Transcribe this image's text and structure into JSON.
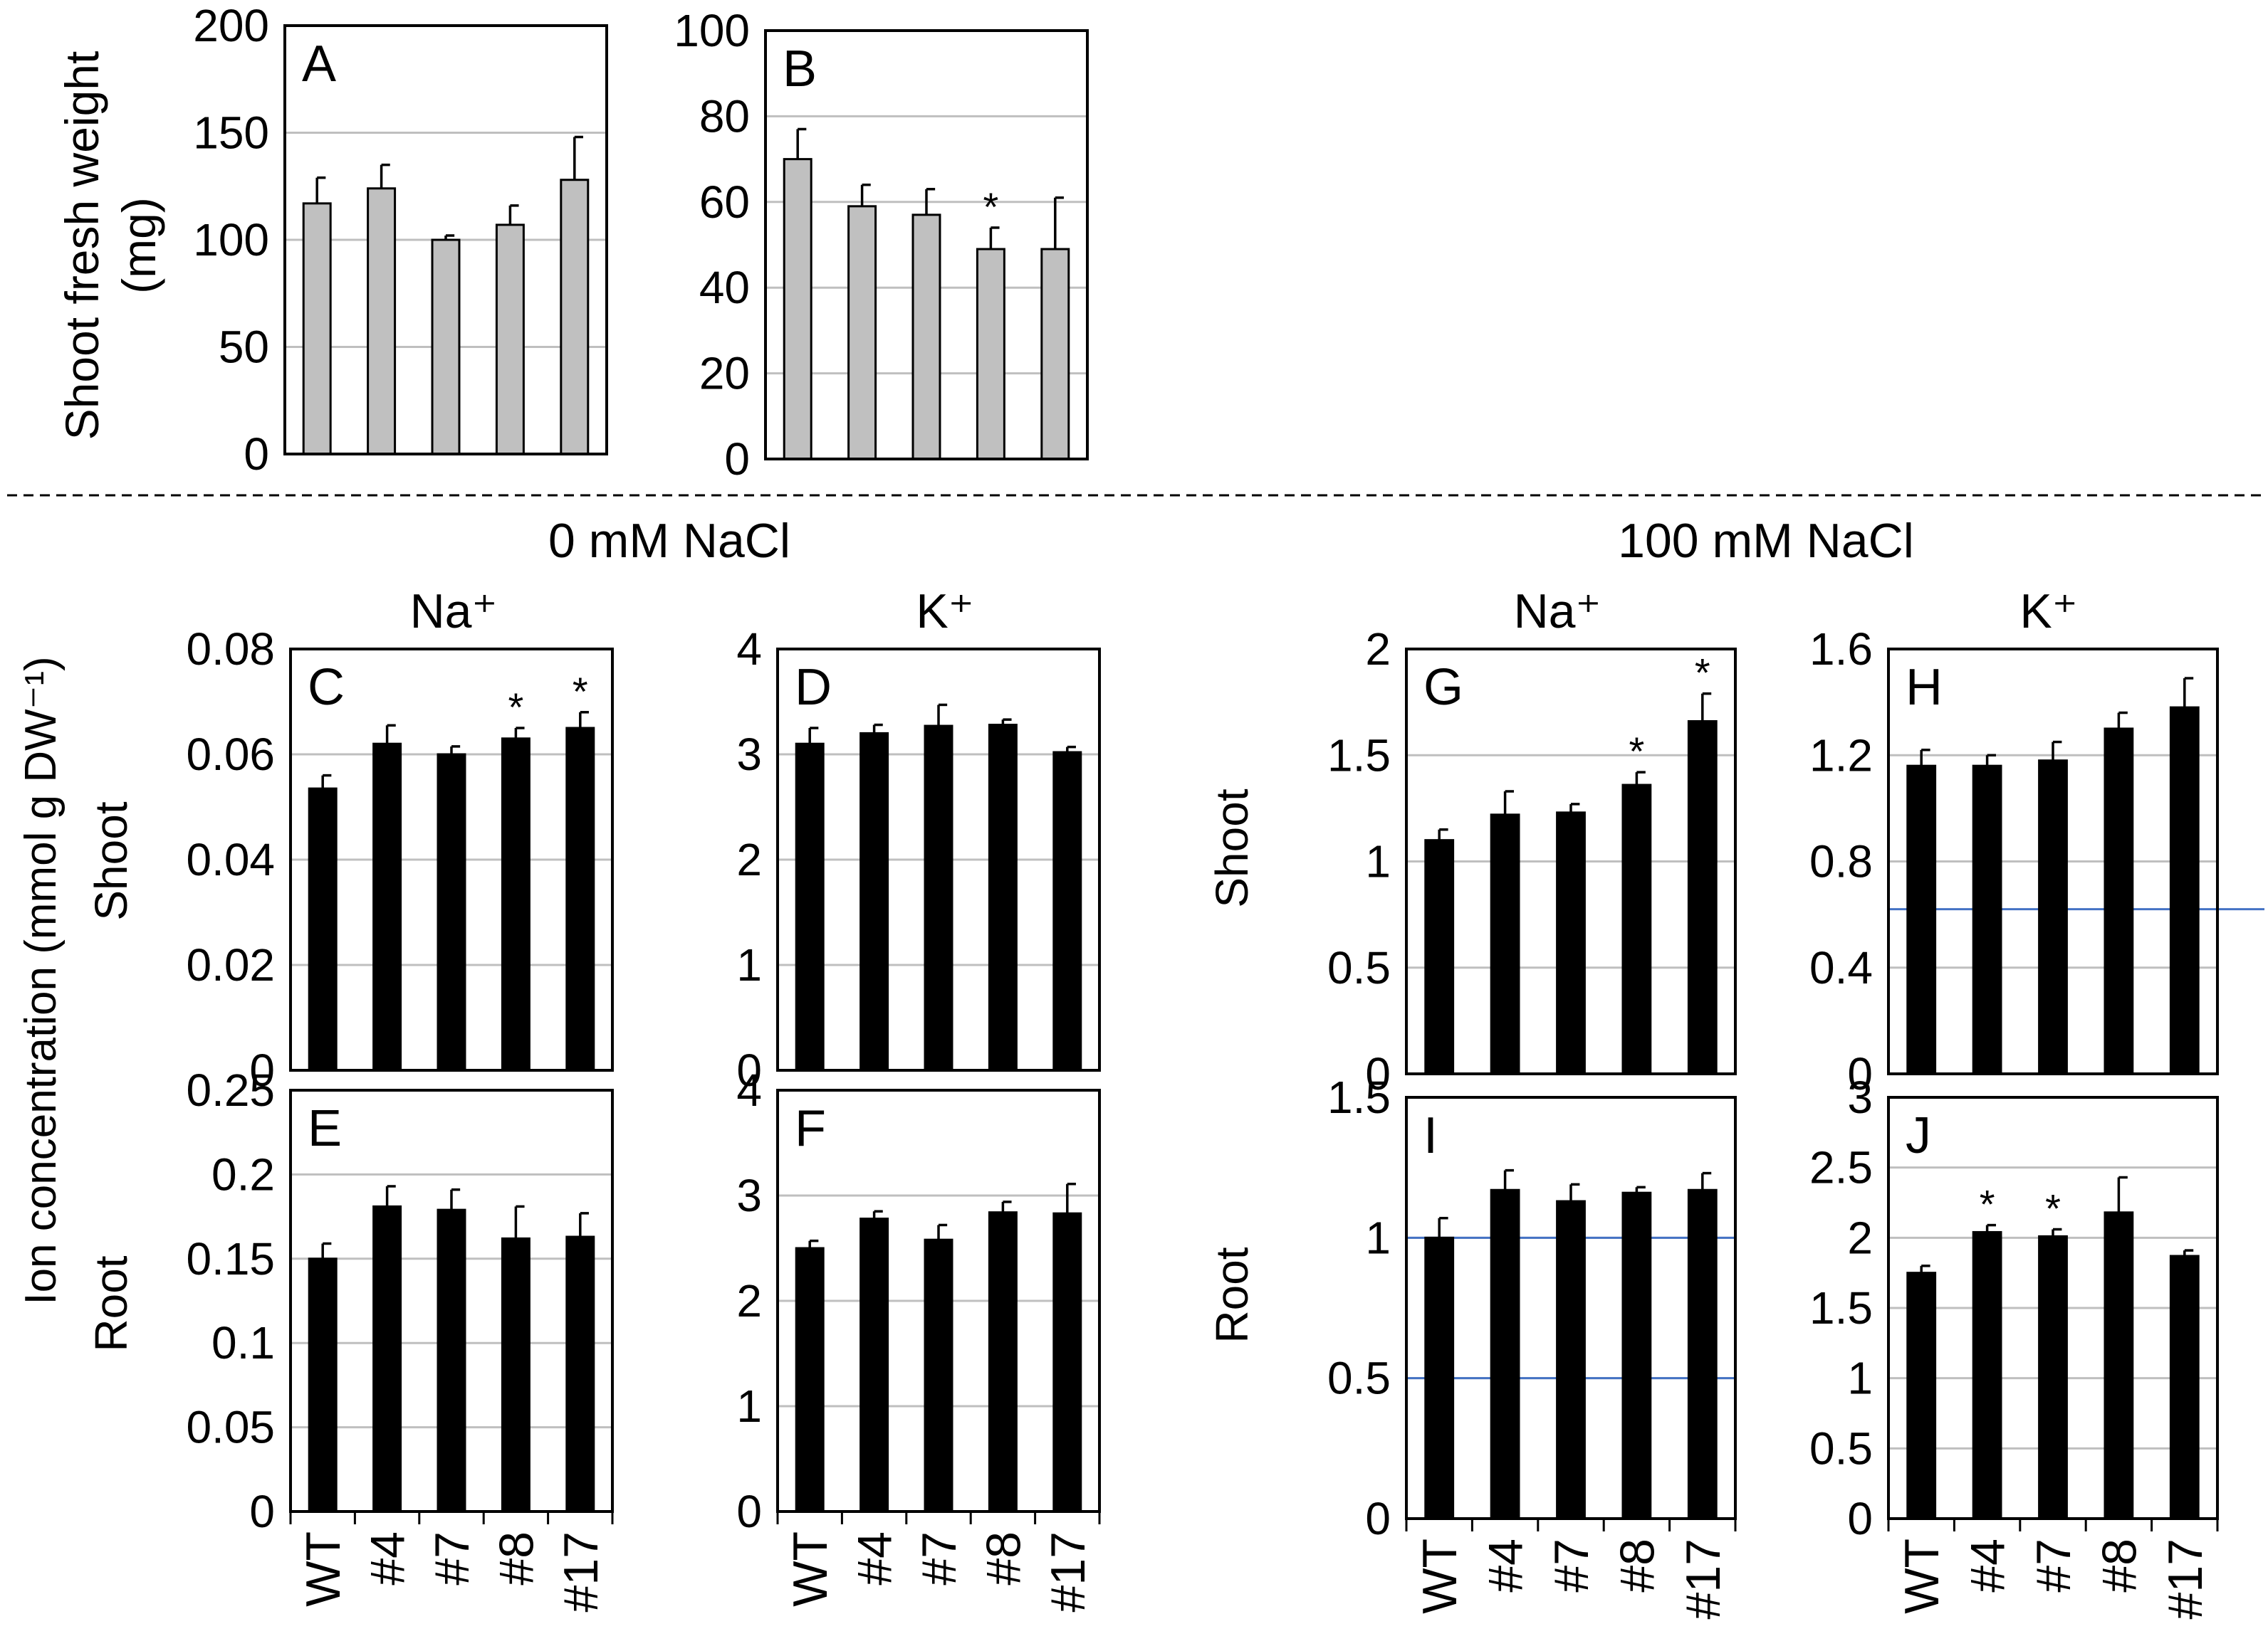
{
  "figure": {
    "section_labels": {
      "nacl_0": "0 mM NaCl",
      "nacl_100": "100 mM NaCl"
    },
    "ion_labels": {
      "na": "Na⁺",
      "k": "K⁺"
    },
    "row_labels": {
      "shoot": "Shoot",
      "root": "Root"
    },
    "ylabel_top": [
      "Shoot fresh weight",
      "(mg)"
    ],
    "ylabel_ion": "Ion concentration (mmol g DW⁻¹)",
    "significance_marker": "*",
    "colors": {
      "gray_bar": "#c0c0c0",
      "black_bar": "#000000",
      "grid": "#bfbfbf",
      "blue_grid": "#4472c4"
    }
  },
  "chart_data": [
    {
      "id": "A",
      "type": "bar",
      "panel_label": "A",
      "categories": [
        "WT",
        "#4",
        "#7",
        "#8",
        "#17"
      ],
      "values": [
        117,
        124,
        100,
        107,
        128
      ],
      "errors": [
        12,
        11,
        2,
        9,
        20
      ],
      "significant": [
        false,
        false,
        false,
        false,
        false
      ],
      "ylim": [
        0,
        200
      ],
      "ticks": [
        "0",
        "50",
        "100",
        "150",
        "200"
      ],
      "bar_color": "gray",
      "show_xlabels": false
    },
    {
      "id": "B",
      "type": "bar",
      "panel_label": "B",
      "categories": [
        "WT",
        "#4",
        "#7",
        "#8",
        "#17"
      ],
      "values": [
        70,
        59,
        57,
        49,
        49
      ],
      "errors": [
        7,
        5,
        6,
        5,
        12
      ],
      "significant": [
        false,
        false,
        false,
        true,
        false
      ],
      "ylim": [
        0,
        100
      ],
      "ticks": [
        "0",
        "20",
        "40",
        "60",
        "80",
        "100"
      ],
      "bar_color": "gray",
      "show_xlabels": false
    },
    {
      "id": "C",
      "type": "bar",
      "panel_label": "C",
      "categories": [
        "WT",
        "#4",
        "#7",
        "#8",
        "#17"
      ],
      "values": [
        0.0535,
        0.062,
        0.06,
        0.063,
        0.065
      ],
      "errors": [
        0.0025,
        0.0035,
        0.0015,
        0.002,
        0.003
      ],
      "significant": [
        false,
        false,
        false,
        true,
        true
      ],
      "ylim": [
        0,
        0.08
      ],
      "ticks": [
        "0",
        "0.02",
        "0.04",
        "0.06",
        "0.08"
      ],
      "bar_color": "black",
      "show_xlabels": false
    },
    {
      "id": "D",
      "type": "bar",
      "panel_label": "D",
      "categories": [
        "WT",
        "#4",
        "#7",
        "#8",
        "#17"
      ],
      "values": [
        3.1,
        3.2,
        3.27,
        3.28,
        3.02
      ],
      "errors": [
        0.15,
        0.08,
        0.2,
        0.05,
        0.05
      ],
      "significant": [
        false,
        false,
        false,
        false,
        false
      ],
      "ylim": [
        0,
        4
      ],
      "ticks": [
        "0",
        "1",
        "2",
        "3",
        "4"
      ],
      "bar_color": "black",
      "show_xlabels": false
    },
    {
      "id": "E",
      "type": "bar",
      "panel_label": "E",
      "categories": [
        "WT",
        "#4",
        "#7",
        "#8",
        "#17"
      ],
      "values": [
        0.15,
        0.181,
        0.179,
        0.162,
        0.163
      ],
      "errors": [
        0.009,
        0.012,
        0.012,
        0.019,
        0.014
      ],
      "significant": [
        false,
        false,
        false,
        false,
        false
      ],
      "ylim": [
        0,
        0.25
      ],
      "ticks": [
        "0",
        "0.05",
        "0.1",
        "0.15",
        "0.2",
        "0.25"
      ],
      "bar_color": "black",
      "show_xlabels": true
    },
    {
      "id": "F",
      "type": "bar",
      "panel_label": "F",
      "categories": [
        "WT",
        "#4",
        "#7",
        "#8",
        "#17"
      ],
      "values": [
        2.5,
        2.78,
        2.58,
        2.84,
        2.83
      ],
      "errors": [
        0.07,
        0.07,
        0.14,
        0.1,
        0.28
      ],
      "significant": [
        false,
        false,
        false,
        false,
        false
      ],
      "ylim": [
        0,
        4
      ],
      "ticks": [
        "0",
        "1",
        "2",
        "3",
        "4"
      ],
      "bar_color": "black",
      "show_xlabels": true
    },
    {
      "id": "G",
      "type": "bar",
      "panel_label": "G",
      "categories": [
        "WT",
        "#4",
        "#7",
        "#8",
        "#17"
      ],
      "values": [
        1.1,
        1.22,
        1.23,
        1.36,
        1.66
      ],
      "errors": [
        0.05,
        0.11,
        0.04,
        0.06,
        0.13
      ],
      "significant": [
        false,
        false,
        false,
        true,
        true
      ],
      "ylim": [
        0,
        2
      ],
      "ticks": [
        "0",
        "0.5",
        "1",
        "1.5",
        "2"
      ],
      "bar_color": "black",
      "show_xlabels": false
    },
    {
      "id": "H",
      "type": "bar",
      "panel_label": "H",
      "categories": [
        "WT",
        "#4",
        "#7",
        "#8",
        "#17"
      ],
      "values": [
        1.16,
        1.16,
        1.18,
        1.3,
        1.38
      ],
      "errors": [
        0.06,
        0.04,
        0.07,
        0.06,
        0.11
      ],
      "significant": [
        false,
        false,
        false,
        false,
        false
      ],
      "ylim": [
        0,
        1.6
      ],
      "ticks": [
        "0",
        "0.4",
        "0.8",
        "1.2",
        "1.6"
      ],
      "bar_color": "black",
      "show_xlabels": false
    },
    {
      "id": "I",
      "type": "bar",
      "panel_label": "I",
      "categories": [
        "WT",
        "#4",
        "#7",
        "#8",
        "#17"
      ],
      "values": [
        1.0,
        1.17,
        1.13,
        1.16,
        1.17
      ],
      "errors": [
        0.07,
        0.07,
        0.06,
        0.02,
        0.06
      ],
      "significant": [
        false,
        false,
        false,
        false,
        false
      ],
      "ylim": [
        0,
        1.5
      ],
      "ticks": [
        "0",
        "0.5",
        "1",
        "1.5"
      ],
      "bar_color": "black",
      "show_xlabels": true
    },
    {
      "id": "J",
      "type": "bar",
      "panel_label": "J",
      "categories": [
        "WT",
        "#4",
        "#7",
        "#8",
        "#17"
      ],
      "values": [
        1.75,
        2.04,
        2.01,
        2.18,
        1.87
      ],
      "errors": [
        0.05,
        0.05,
        0.05,
        0.25,
        0.04
      ],
      "significant": [
        false,
        true,
        true,
        false,
        false
      ],
      "ylim": [
        0,
        3
      ],
      "ticks": [
        "0",
        "0.5",
        "1",
        "1.5",
        "2",
        "2.5",
        "3"
      ],
      "bar_color": "black",
      "show_xlabels": true
    }
  ]
}
